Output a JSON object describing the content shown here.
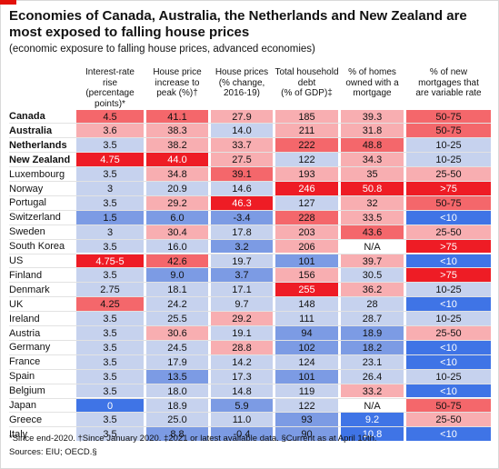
{
  "title": "Economies of Canada, Australia, the Netherlands and New Zealand are most exposed to falling house prices",
  "subtitle": "(economic exposure to falling house prices, advanced economies)",
  "colors": {
    "dark_red": "#ee1c25",
    "red": "#f4676b",
    "light_red": "#f8aeb1",
    "light_blue": "#c6d2ee",
    "blue": "#7c9be4",
    "dark_blue": "#3f74e6",
    "accent": "#e3120b"
  },
  "chart_data": {
    "type": "table",
    "columns": [
      "Interest-rate rise (percentage points)*",
      "House price increase to peak (%)†",
      "House prices (% change, 2016-19)",
      "Total household debt (% of GDP)‡",
      "% of homes owned with a mortgage",
      "% of new mortgages that are variable rate"
    ],
    "rows": [
      {
        "country": "Canada",
        "bold": true,
        "values": [
          "4.5",
          "41.1",
          "27.9",
          "185",
          "39.3",
          "50-75"
        ],
        "shade": [
          "red",
          "red",
          "light_red",
          "light_red",
          "light_red",
          "red"
        ]
      },
      {
        "country": "Australia",
        "bold": true,
        "values": [
          "3.6",
          "38.3",
          "14.0",
          "211",
          "31.8",
          "50-75"
        ],
        "shade": [
          "light_red",
          "light_red",
          "light_blue",
          "light_red",
          "light_red",
          "red"
        ]
      },
      {
        "country": "Netherlands",
        "bold": true,
        "values": [
          "3.5",
          "38.2",
          "33.7",
          "222",
          "48.8",
          "10-25"
        ],
        "shade": [
          "light_blue",
          "light_red",
          "light_red",
          "red",
          "red",
          "light_blue"
        ]
      },
      {
        "country": "New Zealand",
        "bold": true,
        "values": [
          "4.75",
          "44.0",
          "27.5",
          "122",
          "34.3",
          "10-25"
        ],
        "shade": [
          "dark_red",
          "dark_red",
          "light_red",
          "light_blue",
          "light_red",
          "light_blue"
        ]
      },
      {
        "country": "Luxembourg",
        "bold": false,
        "values": [
          "3.5",
          "34.8",
          "39.1",
          "193",
          "35",
          "25-50"
        ],
        "shade": [
          "light_blue",
          "light_red",
          "red",
          "light_red",
          "light_red",
          "light_red"
        ]
      },
      {
        "country": "Norway",
        "bold": false,
        "values": [
          "3",
          "20.9",
          "14.6",
          "246",
          "50.8",
          ">75"
        ],
        "shade": [
          "light_blue",
          "light_blue",
          "light_blue",
          "dark_red",
          "dark_red",
          "dark_red"
        ]
      },
      {
        "country": "Portugal",
        "bold": false,
        "values": [
          "3.5",
          "29.2",
          "46.3",
          "127",
          "32",
          "50-75"
        ],
        "shade": [
          "light_blue",
          "light_red",
          "dark_red",
          "light_blue",
          "light_red",
          "red"
        ]
      },
      {
        "country": "Switzerland",
        "bold": false,
        "values": [
          "1.5",
          "6.0",
          "-3.4",
          "228",
          "33.5",
          "<10"
        ],
        "shade": [
          "blue",
          "blue",
          "blue",
          "red",
          "light_red",
          "dark_blue"
        ]
      },
      {
        "country": "Sweden",
        "bold": false,
        "values": [
          "3",
          "30.4",
          "17.8",
          "203",
          "43.6",
          "25-50"
        ],
        "shade": [
          "light_blue",
          "light_red",
          "light_blue",
          "light_red",
          "red",
          "light_red"
        ]
      },
      {
        "country": "South Korea",
        "bold": false,
        "values": [
          "3.5",
          "16.0",
          "3.2",
          "206",
          "N/A",
          ">75"
        ],
        "shade": [
          "light_blue",
          "light_blue",
          "blue",
          "light_red",
          "none",
          "dark_red"
        ]
      },
      {
        "country": "US",
        "bold": false,
        "values": [
          "4.75-5",
          "42.6",
          "19.7",
          "101",
          "39.7",
          "<10"
        ],
        "shade": [
          "dark_red",
          "red",
          "light_blue",
          "blue",
          "light_red",
          "dark_blue"
        ]
      },
      {
        "country": "Finland",
        "bold": false,
        "values": [
          "3.5",
          "9.0",
          "3.7",
          "156",
          "30.5",
          ">75"
        ],
        "shade": [
          "light_blue",
          "blue",
          "blue",
          "light_red",
          "light_blue",
          "dark_red"
        ]
      },
      {
        "country": "Denmark",
        "bold": false,
        "values": [
          "2.75",
          "18.1",
          "17.1",
          "255",
          "36.2",
          "10-25"
        ],
        "shade": [
          "light_blue",
          "light_blue",
          "light_blue",
          "dark_red",
          "light_red",
          "light_blue"
        ]
      },
      {
        "country": "UK",
        "bold": false,
        "values": [
          "4.25",
          "24.2",
          "9.7",
          "148",
          "28",
          "<10"
        ],
        "shade": [
          "red",
          "light_blue",
          "light_blue",
          "light_blue",
          "light_blue",
          "dark_blue"
        ]
      },
      {
        "country": "Ireland",
        "bold": false,
        "values": [
          "3.5",
          "25.5",
          "29.2",
          "111",
          "28.7",
          "10-25"
        ],
        "shade": [
          "light_blue",
          "light_blue",
          "light_red",
          "light_blue",
          "light_blue",
          "light_blue"
        ]
      },
      {
        "country": "Austria",
        "bold": false,
        "values": [
          "3.5",
          "30.6",
          "19.1",
          "94",
          "18.9",
          "25-50"
        ],
        "shade": [
          "light_blue",
          "light_red",
          "light_blue",
          "blue",
          "blue",
          "light_red"
        ]
      },
      {
        "country": "Germany",
        "bold": false,
        "values": [
          "3.5",
          "24.5",
          "28.8",
          "102",
          "18.2",
          "<10"
        ],
        "shade": [
          "light_blue",
          "light_blue",
          "light_red",
          "blue",
          "blue",
          "dark_blue"
        ]
      },
      {
        "country": "France",
        "bold": false,
        "values": [
          "3.5",
          "17.9",
          "14.2",
          "124",
          "23.1",
          "<10"
        ],
        "shade": [
          "light_blue",
          "light_blue",
          "light_blue",
          "light_blue",
          "light_blue",
          "dark_blue"
        ]
      },
      {
        "country": "Spain",
        "bold": false,
        "values": [
          "3.5",
          "13.5",
          "17.3",
          "101",
          "26.4",
          "10-25"
        ],
        "shade": [
          "light_blue",
          "blue",
          "light_blue",
          "blue",
          "light_blue",
          "light_blue"
        ]
      },
      {
        "country": "Belgium",
        "bold": false,
        "values": [
          "3.5",
          "18.0",
          "14.8",
          "119",
          "33.2",
          "<10"
        ],
        "shade": [
          "light_blue",
          "light_blue",
          "light_blue",
          "light_blue",
          "light_red",
          "dark_blue"
        ]
      },
      {
        "country": "Japan",
        "bold": false,
        "values": [
          "0",
          "18.9",
          "5.9",
          "122",
          "N/A",
          "50-75"
        ],
        "shade": [
          "dark_blue",
          "light_blue",
          "blue",
          "light_blue",
          "none",
          "red"
        ]
      },
      {
        "country": "Greece",
        "bold": false,
        "values": [
          "3.5",
          "25.0",
          "11.0",
          "93",
          "9.2",
          "25-50"
        ],
        "shade": [
          "light_blue",
          "light_blue",
          "light_blue",
          "blue",
          "dark_blue",
          "light_red"
        ]
      },
      {
        "country": "Italy",
        "bold": false,
        "values": [
          "3.5",
          "8.8",
          "-0.4",
          "90",
          "10.8",
          "<10"
        ],
        "shade": [
          "light_blue",
          "blue",
          "blue",
          "blue",
          "dark_blue",
          "dark_blue"
        ]
      }
    ]
  },
  "footnotes": {
    "line1": "*Since end-2020.   †Since January 2020.   ‡2021 or latest available data.   §Current as at April 10th.",
    "line2": "Sources: EIU; OECD.§"
  }
}
